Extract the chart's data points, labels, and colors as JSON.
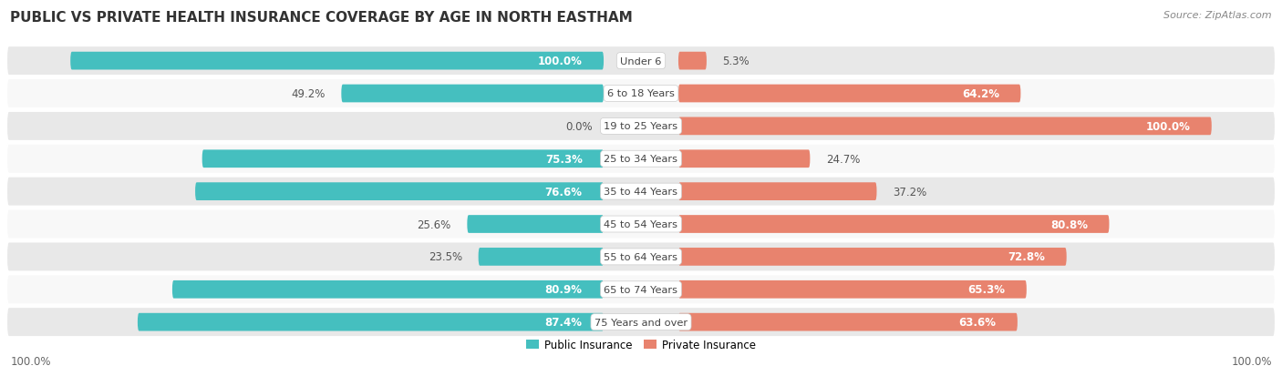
{
  "title": "PUBLIC VS PRIVATE HEALTH INSURANCE COVERAGE BY AGE IN NORTH EASTHAM",
  "source": "Source: ZipAtlas.com",
  "categories": [
    "Under 6",
    "6 to 18 Years",
    "19 to 25 Years",
    "25 to 34 Years",
    "35 to 44 Years",
    "45 to 54 Years",
    "55 to 64 Years",
    "65 to 74 Years",
    "75 Years and over"
  ],
  "public_values": [
    100.0,
    49.2,
    0.0,
    75.3,
    76.6,
    25.6,
    23.5,
    80.9,
    87.4
  ],
  "private_values": [
    5.3,
    64.2,
    100.0,
    24.7,
    37.2,
    80.8,
    72.8,
    65.3,
    63.6
  ],
  "public_color": "#45BFBF",
  "private_color": "#E8836E",
  "row_colors": [
    "#E8E8E8",
    "#F8F8F8",
    "#E8E8E8",
    "#F8F8F8",
    "#E8E8E8",
    "#F8F8F8",
    "#E8E8E8",
    "#F8F8F8",
    "#E8E8E8"
  ],
  "max_value": 100.0,
  "label_fontsize": 8.5,
  "title_fontsize": 11,
  "source_fontsize": 8,
  "footer_labels": [
    "100.0%",
    "100.0%"
  ],
  "legend_labels": [
    "Public Insurance",
    "Private Insurance"
  ],
  "inside_label_threshold": 55
}
